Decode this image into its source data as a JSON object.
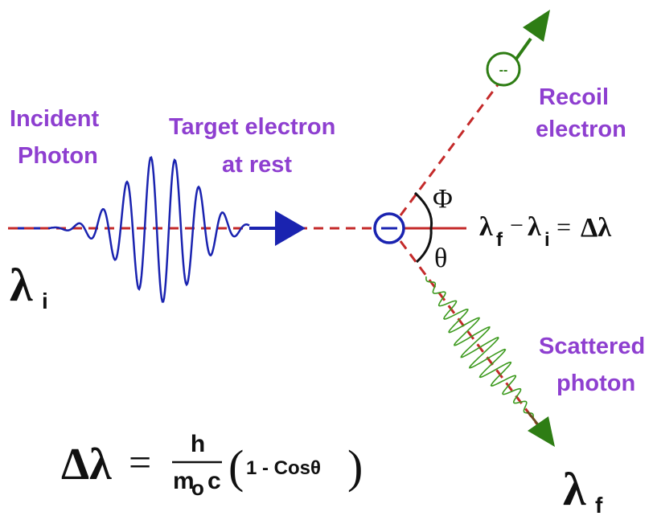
{
  "labels": {
    "incident_line1": "Incident",
    "incident_line2": "Photon",
    "target_line1": "Target electron",
    "target_line2": "at rest",
    "recoil_line1": "Recoil",
    "recoil_line2": "electron",
    "scattered_line1": "Scattered",
    "scattered_line2": "photon"
  },
  "symbols": {
    "lambda": "λ",
    "sub_i": "i",
    "sub_f": "f",
    "phi": "Φ",
    "theta": "θ",
    "minus": "−",
    "equals": "=",
    "delta_lambda": "Δλ",
    "electron_sign": "−",
    "recoil_sign": "--"
  },
  "formula": {
    "lhs": "Δλ",
    "equals": "=",
    "numerator": "h",
    "denominator_m": "m",
    "denominator_o": "o",
    "denominator_c": "c",
    "paren_open": "(",
    "paren_close": ")",
    "paren_body": "1 - Cosθ"
  },
  "colors": {
    "label_purple": "#8e3fd0",
    "incident_wave": "#1a23b0",
    "scattered_wave": "#3c9a1e",
    "beam_dash": "#c42a2a",
    "arrow_blue": "#1a23b0",
    "arrow_green": "#2e7d14",
    "recoil_circle": "#2e7d14"
  }
}
